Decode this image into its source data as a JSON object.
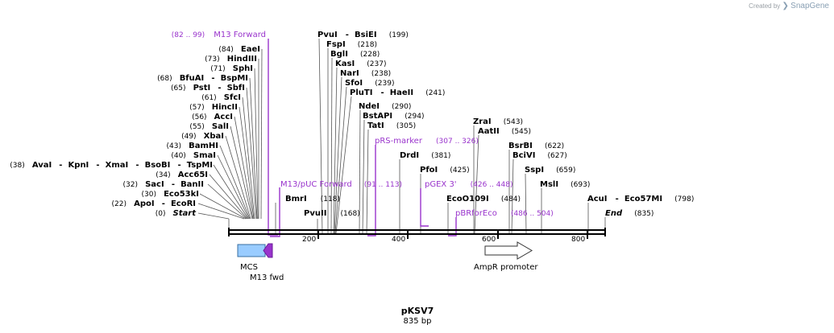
{
  "credit": {
    "created_by": "Created by",
    "brand": "SnapGene"
  },
  "plasmid": {
    "name": "pKSV7",
    "length_label": "835 bp",
    "length": 835
  },
  "axis": {
    "ticks": [
      "200",
      "400",
      "600",
      "800"
    ]
  },
  "enzymes": [
    {
      "pos": "(0)",
      "names": [
        "Start"
      ]
    },
    {
      "pos": "(22)",
      "names": [
        "ApoI",
        "EcoRI"
      ]
    },
    {
      "pos": "(30)",
      "names": [
        "Eco53kI"
      ]
    },
    {
      "pos": "(32)",
      "names": [
        "SacI",
        "BanII"
      ]
    },
    {
      "pos": "(34)",
      "names": [
        "Acc65I"
      ]
    },
    {
      "pos": "(38)",
      "names": [
        "AvaI",
        "KpnI",
        "XmaI",
        "BsoBI",
        "TspMI"
      ]
    },
    {
      "pos": "(40)",
      "names": [
        "SmaI"
      ]
    },
    {
      "pos": "(43)",
      "names": [
        "BamHI"
      ]
    },
    {
      "pos": "(49)",
      "names": [
        "XbaI"
      ]
    },
    {
      "pos": "(55)",
      "names": [
        "SalI"
      ]
    },
    {
      "pos": "(56)",
      "names": [
        "AccI"
      ]
    },
    {
      "pos": "(57)",
      "names": [
        "HincII"
      ]
    },
    {
      "pos": "(61)",
      "names": [
        "SfcI"
      ]
    },
    {
      "pos": "(65)",
      "names": [
        "PstI",
        "SbfI"
      ]
    },
    {
      "pos": "(68)",
      "names": [
        "BfuAI",
        "BspMI"
      ]
    },
    {
      "pos": "(71)",
      "names": [
        "SphI"
      ]
    },
    {
      "pos": "(73)",
      "names": [
        "HindIII"
      ]
    },
    {
      "pos": "(84)",
      "names": [
        "EaeI"
      ]
    },
    {
      "pos": "(118)",
      "names": [
        "BmrI"
      ]
    },
    {
      "pos": "(168)",
      "names": [
        "PvuII"
      ]
    },
    {
      "pos": "(199)",
      "names": [
        "PvuI",
        "BsiEI"
      ]
    },
    {
      "pos": "(218)",
      "names": [
        "FspI"
      ]
    },
    {
      "pos": "(228)",
      "names": [
        "BglI"
      ]
    },
    {
      "pos": "(237)",
      "names": [
        "KasI"
      ]
    },
    {
      "pos": "(238)",
      "names": [
        "NarI"
      ]
    },
    {
      "pos": "(239)",
      "names": [
        "SfoI"
      ]
    },
    {
      "pos": "(241)",
      "names": [
        "PluTI",
        "HaeII"
      ]
    },
    {
      "pos": "(290)",
      "names": [
        "NdeI"
      ]
    },
    {
      "pos": "(294)",
      "names": [
        "BstAPI"
      ]
    },
    {
      "pos": "(305)",
      "names": [
        "TatI"
      ]
    },
    {
      "pos": "(381)",
      "names": [
        "DrdI"
      ]
    },
    {
      "pos": "(425)",
      "names": [
        "PfoI"
      ]
    },
    {
      "pos": "(484)",
      "names": [
        "EcoO109I"
      ]
    },
    {
      "pos": "(543)",
      "names": [
        "ZraI"
      ]
    },
    {
      "pos": "(545)",
      "names": [
        "AatII"
      ]
    },
    {
      "pos": "(622)",
      "names": [
        "BsrBI"
      ]
    },
    {
      "pos": "(627)",
      "names": [
        "BciVI"
      ]
    },
    {
      "pos": "(659)",
      "names": [
        "SspI"
      ]
    },
    {
      "pos": "(693)",
      "names": [
        "MslI"
      ]
    },
    {
      "pos": "(798)",
      "names": [
        "AcuI",
        "Eco57MI"
      ]
    },
    {
      "pos": "(835)",
      "names": [
        "End"
      ]
    }
  ],
  "primers": [
    {
      "name": "M13 Forward",
      "range": "(82 .. 99)"
    },
    {
      "name": "M13/pUC Forward",
      "range": "(91 .. 113)"
    },
    {
      "name": "pRS-marker",
      "range": "(307 .. 326)"
    },
    {
      "name": "pGEX 3'",
      "range": "(426 .. 448)"
    },
    {
      "name": "pBRforEco",
      "range": "(486 .. 504)"
    }
  ],
  "features": [
    {
      "name": "MCS"
    },
    {
      "name": "M13 fwd"
    },
    {
      "name": "AmpR promoter"
    }
  ],
  "colors": {
    "primer": "#9933cc",
    "mcs_fill": "#99ccff",
    "m13_fill": "#9933cc"
  }
}
